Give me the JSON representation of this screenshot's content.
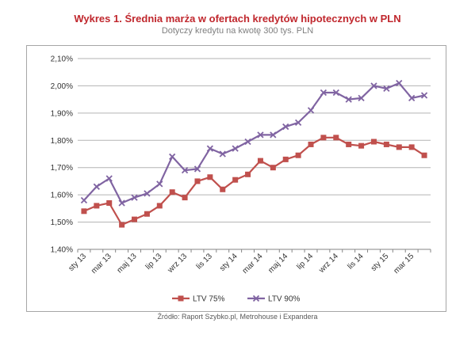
{
  "chart_data": {
    "type": "line",
    "title": "Wykres 1. Średnia marża w ofertach kredytów hipotecznych w PLN",
    "subtitle": "Dotyczy kredytu na kwotę 300 tys. PLN",
    "categories": [
      "sty 13",
      "lut 13",
      "mar 13",
      "kwi 13",
      "maj 13",
      "cze 13",
      "lip 13",
      "sie 13",
      "wrz 13",
      "paź 13",
      "lis 13",
      "gru 13",
      "sty 14",
      "lut 14",
      "mar 14",
      "kwi 14",
      "maj 14",
      "cze 14",
      "lip 14",
      "sie 14",
      "wrz 14",
      "paź 14",
      "lis 14",
      "gru 14",
      "sty 15",
      "lut 15",
      "mar 15",
      "kwi 15"
    ],
    "x_tick_labels": [
      "sty 13",
      "mar 13",
      "maj 13",
      "lip 13",
      "wrz 13",
      "lis 13",
      "sty 14",
      "mar 14",
      "maj 14",
      "lip 14",
      "wrz 14",
      "lis 14",
      "sty 15",
      "mar 15"
    ],
    "series": [
      {
        "name": "LTV 75%",
        "color": "#c0504d",
        "marker": "square",
        "values": [
          1.54,
          1.56,
          1.57,
          1.49,
          1.51,
          1.53,
          1.56,
          1.61,
          1.59,
          1.65,
          1.665,
          1.62,
          1.655,
          1.675,
          1.725,
          1.7,
          1.73,
          1.745,
          1.785,
          1.81,
          1.81,
          1.785,
          1.78,
          1.795,
          1.785,
          1.775,
          1.775,
          1.745
        ]
      },
      {
        "name": "LTV 90%",
        "color": "#8064a2",
        "marker": "x",
        "values": [
          1.58,
          1.63,
          1.66,
          1.57,
          1.59,
          1.605,
          1.64,
          1.74,
          1.69,
          1.695,
          1.77,
          1.75,
          1.77,
          1.795,
          1.82,
          1.82,
          1.85,
          1.865,
          1.91,
          1.975,
          1.975,
          1.95,
          1.955,
          2.0,
          1.99,
          2.01,
          1.955,
          1.965
        ]
      }
    ],
    "ylim": [
      1.4,
      2.1
    ],
    "y_ticks": [
      "1,40%",
      "1,50%",
      "1,60%",
      "1,70%",
      "1,80%",
      "1,90%",
      "2,00%",
      "2,10%"
    ],
    "grid": true,
    "legend_position": "bottom",
    "xlabel": "",
    "ylabel": ""
  },
  "source": "Źródło: Raport Szybko.pl, Metrohouse i Expandera"
}
